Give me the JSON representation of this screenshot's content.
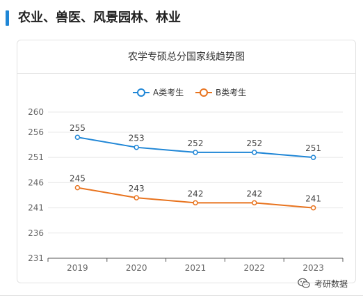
{
  "section": {
    "title": "农业、兽医、风景园林、林业"
  },
  "chart_data": {
    "type": "line",
    "title": "农学专硕总分国家线趋势图",
    "categories": [
      "2019",
      "2020",
      "2021",
      "2022",
      "2023"
    ],
    "series": [
      {
        "name": "A类考生",
        "color": "#1f86d6",
        "values": [
          255,
          253,
          252,
          252,
          251
        ]
      },
      {
        "name": "B类考生",
        "color": "#e8731e",
        "values": [
          245,
          243,
          242,
          242,
          241
        ]
      }
    ],
    "y_ticks": [
      231,
      236,
      241,
      246,
      251,
      256,
      260
    ],
    "ylim": [
      231,
      260
    ],
    "xlabel": "",
    "ylabel": "",
    "grid": true,
    "legend_position": "top-center",
    "data_labels": true
  },
  "watermark": {
    "text": "考研数据",
    "icon": "wechat-icon"
  }
}
